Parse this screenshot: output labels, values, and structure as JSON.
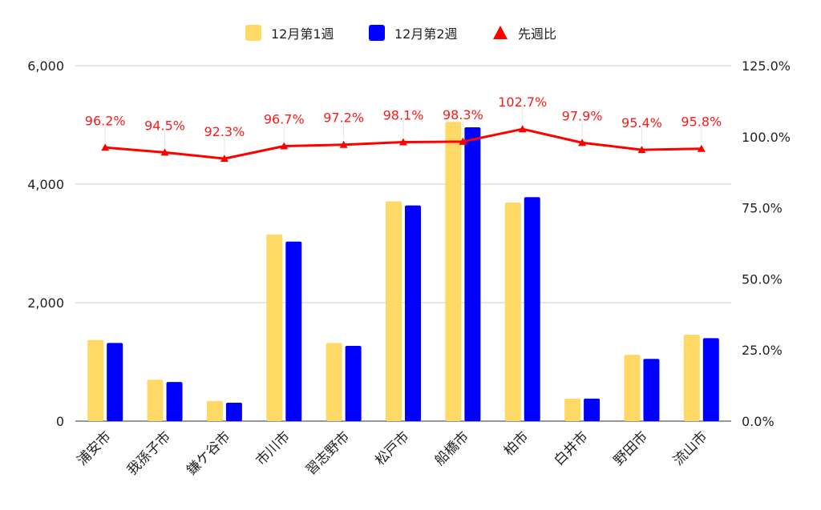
{
  "chart_data": {
    "type": "bar",
    "categories": [
      "浦安市",
      "我孫子市",
      "鎌ケ谷市",
      "市川市",
      "習志野市",
      "松戸市",
      "船橋市",
      "柏市",
      "白井市",
      "野田市",
      "流山市"
    ],
    "series": [
      {
        "name": "12月第1週",
        "type": "bar",
        "axis": "left",
        "color": "#FFD966",
        "values": [
          1370,
          700,
          340,
          3150,
          1320,
          3710,
          5050,
          3690,
          380,
          1120,
          1460
        ]
      },
      {
        "name": "12月第2週",
        "type": "bar",
        "axis": "left",
        "color": "#0000FF",
        "values": [
          1320,
          660,
          310,
          3030,
          1270,
          3640,
          4960,
          3780,
          380,
          1050,
          1400
        ]
      },
      {
        "name": "先週比",
        "type": "line",
        "axis": "right",
        "color": "#FF0000",
        "marker": "triangle",
        "values": [
          96.2,
          94.5,
          92.3,
          96.7,
          97.2,
          98.1,
          98.3,
          102.7,
          97.9,
          95.4,
          95.8
        ],
        "labels": [
          "96.2%",
          "94.5%",
          "92.3%",
          "96.7%",
          "97.2%",
          "98.1%",
          "98.3%",
          "102.7%",
          "97.9%",
          "95.4%",
          "95.8%"
        ]
      }
    ],
    "left_axis": {
      "min": 0,
      "max": 6000,
      "ticks": [
        0,
        2000,
        4000,
        6000
      ],
      "tick_labels": [
        "0",
        "2,000",
        "4,000",
        "6,000"
      ]
    },
    "right_axis": {
      "min": 0,
      "max": 125,
      "ticks": [
        0,
        25,
        50,
        75,
        100,
        125
      ],
      "tick_labels": [
        "0.0%",
        "25.0%",
        "50.0%",
        "75.0%",
        "100.0%",
        "125.0%"
      ]
    },
    "title": "",
    "xlabel": "",
    "ylabel": "",
    "grid": true,
    "legend_position": "top-center"
  }
}
